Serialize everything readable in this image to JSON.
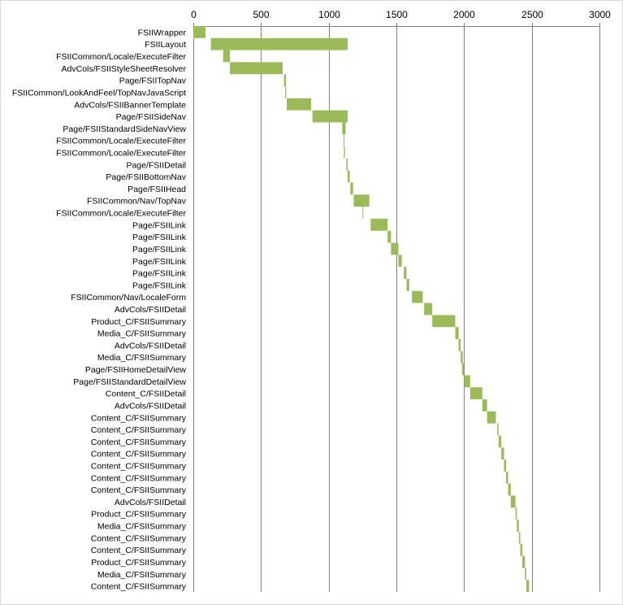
{
  "chart_data": {
    "type": "bar",
    "orientation": "horizontal",
    "stacked_offset": true,
    "xlim": [
      0,
      3000
    ],
    "x_ticks": [
      0,
      500,
      1000,
      1500,
      2000,
      2500,
      3000
    ],
    "x_tick_labels": [
      "0",
      "500",
      "1000",
      "1500",
      "2000",
      "2500",
      "3000"
    ],
    "x_axis_position": "top",
    "grid": true,
    "legend": "none",
    "bar_color": "#9bbb59",
    "gridline_color": "#808080",
    "categories": [
      "FSIIWrapper",
      "FSIILayout",
      "FSIICommon/Locale/ExecuteFilter",
      "AdvCols/FSIIStyleSheetResolver",
      "Page/FSIITopNav",
      "FSIICommon/LookAndFeel/TopNavJavaScript",
      "AdvCols/FSIIBannerTemplate",
      "Page/FSIISideNav",
      "Page/FSIIStandardSideNavView",
      "FSIICommon/Locale/ExecuteFilter",
      "FSIICommon/Locale/ExecuteFilter",
      "Page/FSIIDetail",
      "Page/FSIIBottomNav",
      "Page/FSIIHead",
      "FSIICommon/Nav/TopNav",
      "FSIICommon/Locale/ExecuteFilter",
      "Page/FSIILink",
      "Page/FSIILink",
      "Page/FSIILink",
      "Page/FSIILink",
      "Page/FSIILink",
      "Page/FSIILink",
      "FSIICommon/Nav/LocaleForm",
      "AdvCols/FSIIDetail",
      "Product_C/FSIISummary",
      "Media_C/FSIISummary",
      "AdvCols/FSIIDetail",
      "Media_C/FSIISummary",
      "Page/FSIIHomeDetailView",
      "Page/FSIIStandardDetailView",
      "Content_C/FSIIDetail",
      "AdvCols/FSIIDetail",
      "Content_C/FSIISummary",
      "Content_C/FSIISummary",
      "Content_C/FSIISummary",
      "Content_C/FSIISummary",
      "Content_C/FSIISummary",
      "Content_C/FSIISummary",
      "Content_C/FSIISummary",
      "AdvCols/FSIIDetail",
      "Product_C/FSIISummary",
      "Media_C/FSIISummary",
      "Content_C/FSIISummary",
      "Content_C/FSIISummary",
      "Product_C/FSIISummary",
      "Media_C/FSIISummary",
      "Content_C/FSIISummary"
    ],
    "start": [
      0,
      130,
      220,
      270,
      670,
      678,
      690,
      880,
      1100,
      1110,
      1112,
      1130,
      1140,
      1160,
      1185,
      1250,
      1310,
      1435,
      1460,
      1515,
      1555,
      1575,
      1615,
      1705,
      1765,
      1935,
      1960,
      1975,
      1985,
      2000,
      2045,
      2135,
      2170,
      2245,
      2255,
      2275,
      2295,
      2310,
      2325,
      2345,
      2380,
      2390,
      2405,
      2415,
      2430,
      2450,
      2460
    ],
    "duration": [
      90,
      1010,
      50,
      390,
      15,
      8,
      180,
      260,
      25,
      5,
      8,
      10,
      15,
      20,
      115,
      5,
      125,
      25,
      55,
      25,
      20,
      20,
      80,
      60,
      170,
      25,
      15,
      15,
      15,
      45,
      90,
      35,
      65,
      10,
      20,
      20,
      15,
      15,
      20,
      35,
      10,
      15,
      10,
      15,
      20,
      10,
      20
    ]
  }
}
